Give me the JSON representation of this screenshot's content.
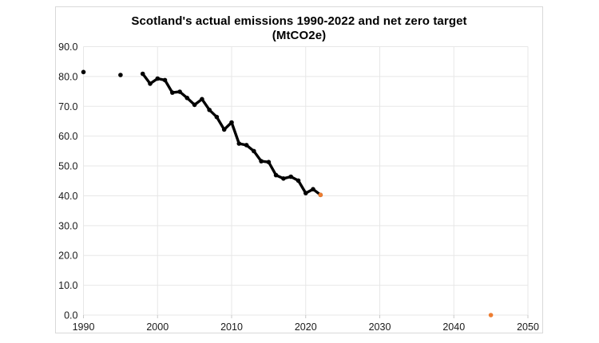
{
  "window": {
    "background": "#ffffff"
  },
  "chart": {
    "frame_border_color": "#d9d9d9",
    "background": "#ffffff",
    "grid_color": "#e7e7e7",
    "axis_tick_color": "#c9c9c9",
    "tick_label_color": "#1a1a1a",
    "title_color": "#000000"
  },
  "chart_data": {
    "type": "line",
    "title": "Scotland's actual emissions 1990-2022 and net zero target (MtCO2e)",
    "title_line1": "Scotland's actual emissions 1990-2022 and net zero target",
    "title_line2": "(MtCO2e)",
    "xlabel": "",
    "ylabel": "",
    "xlim": [
      1990,
      2050
    ],
    "ylim": [
      0,
      90
    ],
    "grid": true,
    "legend_position": "none",
    "x_tick_values": [
      1990,
      2000,
      2010,
      2020,
      2030,
      2040,
      2050
    ],
    "x_tick_labels": [
      "1990",
      "2000",
      "2010",
      "2020",
      "2030",
      "2040",
      "2050"
    ],
    "y_tick_values": [
      0,
      10,
      20,
      30,
      40,
      50,
      60,
      70,
      80,
      90
    ],
    "y_tick_labels": [
      "0.0",
      "10.0",
      "20.0",
      "30.0",
      "40.0",
      "50.0",
      "60.0",
      "70.0",
      "80.0",
      "90.0"
    ],
    "series": [
      {
        "name": "Actual emissions",
        "color": "#000000",
        "style": "solid",
        "line_width": 3.4,
        "marker": "circle",
        "marker_color": "#000000",
        "points": [
          [
            1990,
            81.5
          ],
          [
            1995,
            80.5
          ],
          [
            1998,
            80.9
          ],
          [
            1999,
            77.6
          ],
          [
            2000,
            79.3
          ],
          [
            2001,
            78.8
          ],
          [
            2002,
            74.6
          ],
          [
            2003,
            74.9
          ],
          [
            2004,
            72.8
          ],
          [
            2005,
            70.5
          ],
          [
            2006,
            72.4
          ],
          [
            2007,
            68.8
          ],
          [
            2008,
            66.4
          ],
          [
            2009,
            62.2
          ],
          [
            2010,
            64.6
          ],
          [
            2011,
            57.5
          ],
          [
            2012,
            57.0
          ],
          [
            2013,
            55.0
          ],
          [
            2014,
            51.6
          ],
          [
            2015,
            51.3
          ],
          [
            2016,
            46.9
          ],
          [
            2017,
            45.8
          ],
          [
            2018,
            46.4
          ],
          [
            2019,
            45.1
          ],
          [
            2020,
            40.9
          ],
          [
            2021,
            42.2
          ],
          [
            2022,
            40.3
          ]
        ]
      },
      {
        "name": "Net zero target",
        "color": "#ff0000",
        "style": "dashed",
        "line_width": 2.4,
        "marker": "circle",
        "marker_color": "#ED7D31",
        "points": [
          [
            2022,
            40.3
          ],
          [
            2045,
            0
          ]
        ]
      }
    ]
  }
}
